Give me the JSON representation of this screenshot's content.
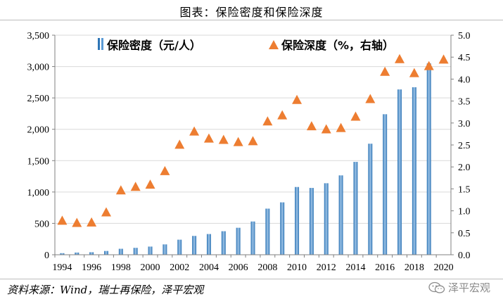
{
  "title": "图表：保险密度和保险深度",
  "source": "资料来源：Wind，瑞士再保险，泽平宏观",
  "watermark": "泽平宏观",
  "watermark_icon": "wechat-icon",
  "colors": {
    "bar": "#5b9bd5",
    "bar_dark": "#2e75b6",
    "marker": "#ed7d31",
    "grid": "#d9d9d9"
  },
  "chart_data": {
    "type": "bar",
    "categories": [
      "1994",
      "1995",
      "1996",
      "1997",
      "1998",
      "1999",
      "2000",
      "2001",
      "2002",
      "2003",
      "2004",
      "2005",
      "2006",
      "2007",
      "2008",
      "2009",
      "2010",
      "2011",
      "2012",
      "2013",
      "2014",
      "2015",
      "2016",
      "2017",
      "2018",
      "2019",
      "2020"
    ],
    "x_tick_labels": [
      "1994",
      "1996",
      "1998",
      "2000",
      "2002",
      "2004",
      "2006",
      "2008",
      "2010",
      "2012",
      "2014",
      "2016",
      "2018",
      "2020"
    ],
    "series": [
      {
        "name": "保险密度（元/人）",
        "type": "bar",
        "axis": "left",
        "values": [
          25,
          35,
          40,
          60,
          95,
          110,
          130,
          165,
          240,
          300,
          330,
          375,
          430,
          530,
          735,
          835,
          1080,
          1065,
          1140,
          1265,
          1480,
          1770,
          2240,
          2635,
          2670,
          3050,
          null
        ]
      },
      {
        "name": "保险深度（%，右轴）",
        "type": "scatter",
        "axis": "right",
        "marker": "triangle",
        "values": [
          0.78,
          0.73,
          0.74,
          0.97,
          1.47,
          1.55,
          1.6,
          1.91,
          2.51,
          2.81,
          2.65,
          2.62,
          2.57,
          2.59,
          3.04,
          3.18,
          3.53,
          2.93,
          2.86,
          2.89,
          3.15,
          3.55,
          4.17,
          4.46,
          4.14,
          4.3,
          4.45
        ]
      }
    ],
    "y_left": {
      "min": 0,
      "max": 3500,
      "step": 500,
      "tick_labels": [
        "0",
        "500",
        "1,000",
        "1,500",
        "2,000",
        "2,500",
        "3,000",
        "3,500"
      ]
    },
    "y_right": {
      "min": 0,
      "max": 5.0,
      "step": 0.5,
      "tick_labels": [
        "0.0",
        "0.5",
        "1.0",
        "1.5",
        "2.0",
        "2.5",
        "3.0",
        "3.5",
        "4.0",
        "4.5",
        "5.0"
      ]
    },
    "legend_position": "top",
    "grid": true
  }
}
